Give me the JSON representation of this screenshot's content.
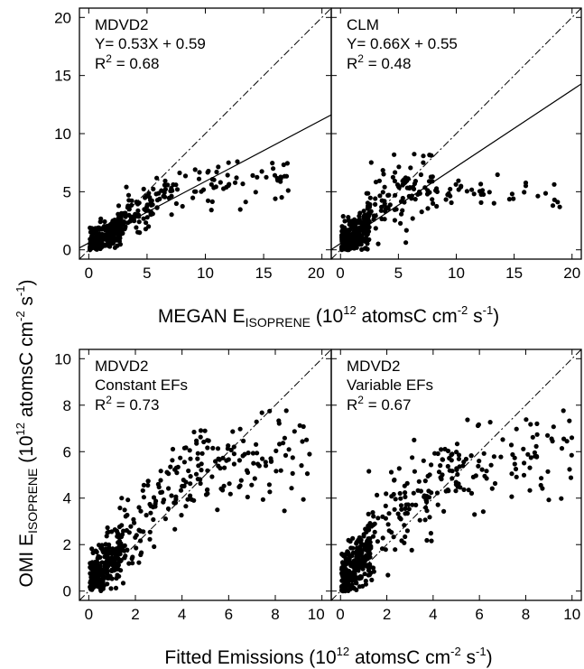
{
  "chart_data": [
    {
      "type": "scatter",
      "panel_label": "MDVD2",
      "equation": "Y= 0.53X + 0.59",
      "r2": "0.68",
      "fit": {
        "slope": 0.53,
        "intercept": 0.59
      },
      "xlim": [
        -0.8,
        20.8
      ],
      "ylim": [
        -0.8,
        20.8
      ],
      "xticks": [
        0,
        5,
        10,
        15,
        20
      ],
      "yticks": [
        0,
        5,
        10,
        15,
        20
      ],
      "clusters": [
        {
          "n": 230,
          "xmin": 0.1,
          "xmax": 2.8,
          "ymin": 0.0,
          "ymax": 2.8,
          "slope": 0.55,
          "intercept": 0.45,
          "spread": 0.65
        },
        {
          "n": 110,
          "xmin": 2.5,
          "xmax": 7.5,
          "ymin": 0.8,
          "ymax": 6.2,
          "slope": 0.55,
          "intercept": 0.9,
          "spread": 0.85
        },
        {
          "n": 60,
          "xmin": 7.5,
          "xmax": 17.5,
          "ymin": 3.4,
          "ymax": 7.6,
          "slope": 0.12,
          "intercept": 4.3,
          "spread": 0.85
        }
      ]
    },
    {
      "type": "scatter",
      "panel_label": "CLM",
      "equation": "Y= 0.66X + 0.55",
      "r2": "0.48",
      "fit": {
        "slope": 0.66,
        "intercept": 0.55
      },
      "xlim": [
        -0.8,
        20.8
      ],
      "ylim": [
        -0.8,
        20.8
      ],
      "xticks": [
        0,
        5,
        10,
        15,
        20
      ],
      "yticks": [
        0,
        5,
        10,
        15,
        20
      ],
      "clusters": [
        {
          "n": 240,
          "xmin": 0.1,
          "xmax": 2.5,
          "ymin": 0.0,
          "ymax": 3.2,
          "slope": 0.6,
          "intercept": 0.5,
          "spread": 0.75
        },
        {
          "n": 110,
          "xmin": 2.0,
          "xmax": 8.0,
          "ymin": 0.5,
          "ymax": 8.3,
          "slope": 0.6,
          "intercept": 1.5,
          "spread": 1.4
        },
        {
          "n": 45,
          "xmin": 7.5,
          "xmax": 19.0,
          "ymin": 3.5,
          "ymax": 7.0,
          "slope": 0.0,
          "intercept": 4.8,
          "spread": 0.75
        }
      ]
    },
    {
      "type": "scatter",
      "panel_label": "MDVD2",
      "subtitle": "Constant EFs",
      "r2": "0.73",
      "xlim": [
        -0.4,
        10.4
      ],
      "ylim": [
        -0.4,
        10.4
      ],
      "xticks": [
        0,
        2,
        4,
        6,
        8,
        10
      ],
      "yticks": [
        0,
        2,
        4,
        6,
        8,
        10
      ],
      "clusters": [
        {
          "n": 230,
          "xmin": 0.05,
          "xmax": 1.4,
          "ymin": 0.0,
          "ymax": 2.8,
          "slope": 1.0,
          "intercept": 0.4,
          "spread": 0.55
        },
        {
          "n": 130,
          "xmin": 1.2,
          "xmax": 5.0,
          "ymin": 0.3,
          "ymax": 7.0,
          "slope": 1.05,
          "intercept": 0.6,
          "spread": 0.9
        },
        {
          "n": 90,
          "xmin": 5.0,
          "xmax": 9.5,
          "ymin": 3.0,
          "ymax": 8.4,
          "slope": 0.18,
          "intercept": 4.3,
          "spread": 0.9
        }
      ]
    },
    {
      "type": "scatter",
      "panel_label": "MDVD2",
      "subtitle": "Variable EFs",
      "r2": "0.67",
      "xlim": [
        -0.4,
        10.4
      ],
      "ylim": [
        -0.4,
        10.4
      ],
      "xticks": [
        0,
        2,
        4,
        6,
        8,
        10
      ],
      "yticks": [
        0,
        2,
        4,
        6,
        8,
        10
      ],
      "clusters": [
        {
          "n": 240,
          "xmin": 0.05,
          "xmax": 1.3,
          "ymin": 0.0,
          "ymax": 3.0,
          "slope": 1.0,
          "intercept": 0.4,
          "spread": 0.6
        },
        {
          "n": 130,
          "xmin": 1.2,
          "xmax": 5.0,
          "ymin": 0.3,
          "ymax": 6.8,
          "slope": 0.95,
          "intercept": 0.9,
          "spread": 0.95
        },
        {
          "n": 85,
          "xmin": 5.0,
          "xmax": 10.0,
          "ymin": 3.0,
          "ymax": 8.4,
          "slope": 0.15,
          "intercept": 4.8,
          "spread": 0.9
        }
      ]
    }
  ],
  "axis_labels": {
    "top_x": "MEGAN E",
    "top_x_sub": "ISOPRENE",
    "top_x_rest": " (10",
    "top_x_exp": "12",
    "top_x_units": " atomsC cm",
    "top_x_cm_exp": "-2",
    "top_x_s": " s",
    "top_x_s_exp": "-1",
    "top_x_close": ")",
    "bottom_x": "Fitted Emissions (10",
    "bottom_x_exp": "12",
    "bottom_x_units": " atomsC cm",
    "bottom_x_cm_exp": "-2",
    "bottom_x_s": " s",
    "bottom_x_s_exp": "-1",
    "bottom_x_close": ")",
    "y_main": "OMI E",
    "y_sub": "ISOPRENE",
    "y_rest": " (10",
    "y_exp": "12",
    "y_units": " atomsC cm",
    "y_cm_exp": "-2",
    "y_s": " s",
    "y_s_exp": "-1",
    "y_close": ")"
  },
  "r2_prefix": "R",
  "r2_sup": "2",
  "r2_eq": " = "
}
